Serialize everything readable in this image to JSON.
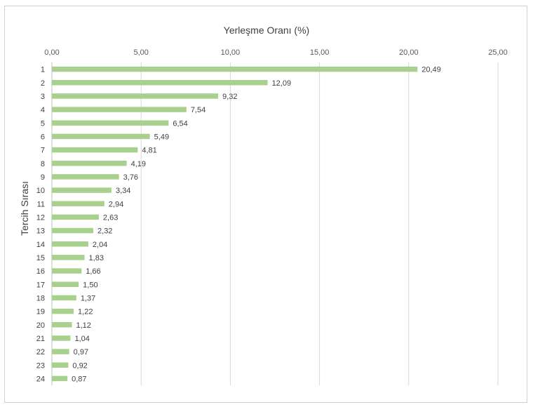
{
  "chart_data": {
    "type": "bar",
    "orientation": "horizontal",
    "xlabel": "Yerleşme Oranı (%)",
    "ylabel": "Tercih Sırası",
    "xlim": [
      0,
      25
    ],
    "x_ticks": [
      "0,00",
      "5,00",
      "10,00",
      "15,00",
      "20,00",
      "25,00"
    ],
    "x_axis_position": "top",
    "grid": true,
    "bar_color": "#a9d18e",
    "categories": [
      "1",
      "2",
      "3",
      "4",
      "5",
      "6",
      "7",
      "8",
      "9",
      "10",
      "11",
      "12",
      "13",
      "14",
      "15",
      "16",
      "17",
      "18",
      "19",
      "20",
      "21",
      "22",
      "23",
      "24"
    ],
    "values": [
      20.49,
      12.09,
      9.32,
      7.54,
      6.54,
      5.49,
      4.81,
      4.19,
      3.76,
      3.34,
      2.94,
      2.63,
      2.32,
      2.04,
      1.83,
      1.66,
      1.5,
      1.37,
      1.22,
      1.12,
      1.04,
      0.97,
      0.92,
      0.87
    ],
    "data_labels": [
      "20,49",
      "12,09",
      "9,32",
      "7,54",
      "6,54",
      "5,49",
      "4,81",
      "4,19",
      "3,76",
      "3,34",
      "2,94",
      "2,63",
      "2,32",
      "2,04",
      "1,83",
      "1,66",
      "1,50",
      "1,37",
      "1,22",
      "1,12",
      "1,04",
      "0,97",
      "0,92",
      "0,87"
    ]
  }
}
